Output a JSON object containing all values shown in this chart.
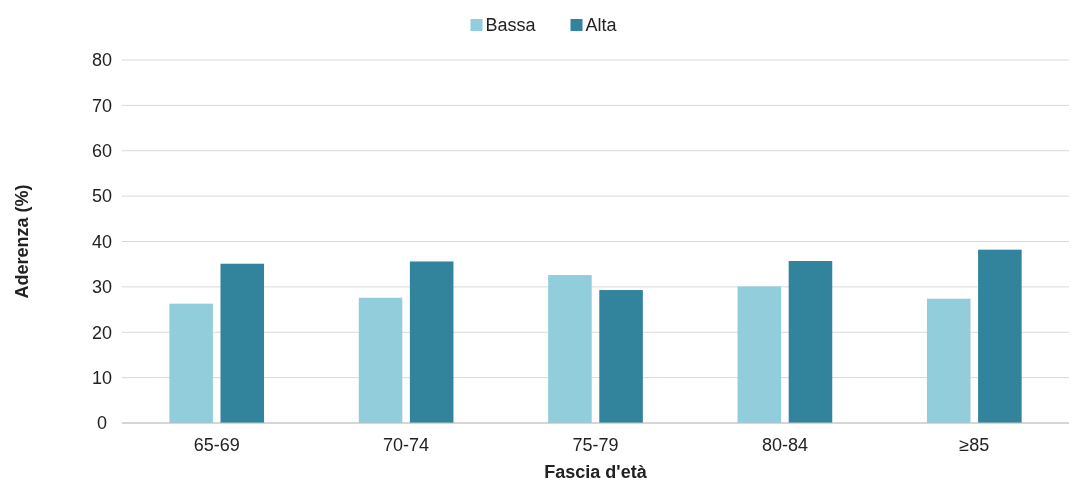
{
  "chart_data": {
    "type": "bar",
    "xlabel": "Fascia d'età",
    "ylabel": "Aderenza (%)",
    "categories": [
      "65-69",
      "70-74",
      "75-79",
      "80-84",
      "≥85"
    ],
    "series": [
      {
        "name": "Bassa",
        "color": "#92cddc",
        "values": [
          26.3,
          27.6,
          32.6,
          30.1,
          27.4
        ]
      },
      {
        "name": "Alta",
        "color": "#31849b",
        "values": [
          35.1,
          35.6,
          29.3,
          35.7,
          38.2
        ]
      }
    ],
    "ylim": [
      0,
      80
    ],
    "yticks": [
      0,
      10,
      20,
      30,
      40,
      50,
      60,
      70,
      80
    ],
    "grid": "y",
    "legend": "top"
  }
}
